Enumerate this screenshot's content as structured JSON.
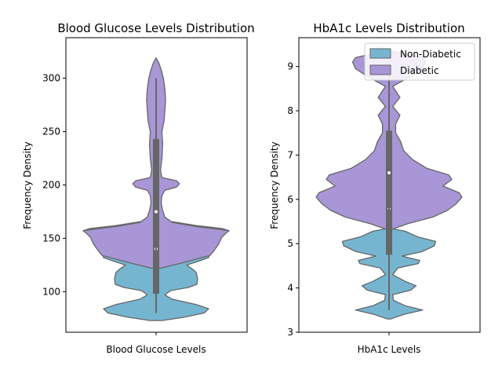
{
  "colors": {
    "non_diabetic": "#76b5d0",
    "diabetic": "#a896d6",
    "edge": "#666666",
    "box": "#666666"
  },
  "chart_data": [
    {
      "type": "violin",
      "title": "Blood Glucose Levels Distribution",
      "xlabel": "Blood Glucose Levels",
      "ylabel": "Frequency Density",
      "ylim": [
        62,
        338
      ],
      "yticks": [
        100,
        150,
        200,
        250,
        300
      ],
      "series": [
        {
          "key": "non_diabetic",
          "profile": [
            [
              73,
              0.08
            ],
            [
              76,
              0.38
            ],
            [
              80,
              0.66
            ],
            [
              84,
              0.72
            ],
            [
              88,
              0.55
            ],
            [
              93,
              0.22
            ],
            [
              97,
              0.12
            ],
            [
              101,
              0.2
            ],
            [
              104,
              0.45
            ],
            [
              107,
              0.56
            ],
            [
              112,
              0.57
            ],
            [
              118,
              0.55
            ],
            [
              121,
              0.5
            ],
            [
              125,
              0.42
            ],
            [
              128,
              0.56
            ],
            [
              132,
              0.72
            ],
            [
              136,
              0.74
            ],
            [
              140,
              0.68
            ],
            [
              144,
              0.7
            ],
            [
              148,
              0.66
            ],
            [
              151,
              0.55
            ],
            [
              154,
              0.8
            ],
            [
              157,
              1.0
            ],
            [
              159,
              0.92
            ],
            [
              162,
              0.55
            ],
            [
              166,
              0.18
            ],
            [
              170,
              0.05
            ]
          ],
          "box": {
            "q1": 98,
            "median": 140,
            "q3": 162,
            "whisker_low": 80,
            "whisker_high": 200
          }
        },
        {
          "key": "diabetic",
          "profile": [
            [
              122,
              0.06
            ],
            [
              126,
              0.3
            ],
            [
              130,
              0.52
            ],
            [
              134,
              0.74
            ],
            [
              139,
              0.8
            ],
            [
              145,
              0.86
            ],
            [
              151,
              0.9
            ],
            [
              155,
              0.96
            ],
            [
              157,
              1.0
            ],
            [
              159,
              0.8
            ],
            [
              161,
              0.55
            ],
            [
              165,
              0.22
            ],
            [
              170,
              0.12
            ],
            [
              176,
              0.09
            ],
            [
              183,
              0.07
            ],
            [
              190,
              0.08
            ],
            [
              195,
              0.12
            ],
            [
              198,
              0.28
            ],
            [
              201,
              0.32
            ],
            [
              204,
              0.28
            ],
            [
              207,
              0.08
            ],
            [
              214,
              0.06
            ],
            [
              225,
              0.08
            ],
            [
              238,
              0.09
            ],
            [
              250,
              0.08
            ],
            [
              260,
              0.11
            ],
            [
              270,
              0.12
            ],
            [
              280,
              0.13
            ],
            [
              290,
              0.12
            ],
            [
              300,
              0.1
            ],
            [
              308,
              0.07
            ],
            [
              314,
              0.04
            ],
            [
              319,
              0.0
            ]
          ],
          "box": {
            "q1": 155,
            "median": 175,
            "q3": 243,
            "whisker_low": 120,
            "whisker_high": 300
          }
        }
      ]
    },
    {
      "type": "violin",
      "title": "HbA1c Levels Distribution",
      "xlabel": "HbA1c Levels",
      "ylabel": "Frequency Density",
      "ylim": [
        3.0,
        9.65
      ],
      "yticks": [
        3,
        4,
        5,
        6,
        7,
        8,
        9
      ],
      "legend": {
        "position": "top-right",
        "entries": [
          "Non-Diabetic",
          "Diabetic"
        ]
      },
      "series": [
        {
          "key": "non_diabetic",
          "profile": [
            [
              3.3,
              0.02
            ],
            [
              3.4,
              0.2
            ],
            [
              3.5,
              0.46
            ],
            [
              3.6,
              0.22
            ],
            [
              3.72,
              0.06
            ],
            [
              3.85,
              0.05
            ],
            [
              3.95,
              0.3
            ],
            [
              4.05,
              0.37
            ],
            [
              4.15,
              0.22
            ],
            [
              4.3,
              0.05
            ],
            [
              4.45,
              0.12
            ],
            [
              4.55,
              0.4
            ],
            [
              4.62,
              0.42
            ],
            [
              4.72,
              0.18
            ],
            [
              4.82,
              0.45
            ],
            [
              4.95,
              0.62
            ],
            [
              5.05,
              0.64
            ],
            [
              5.15,
              0.4
            ],
            [
              5.28,
              0.22
            ],
            [
              5.35,
              0.0
            ]
          ],
          "box": {
            "q1": 4.75,
            "median": 5.8,
            "q3": 6.6,
            "whisker_low": 3.5,
            "whisker_high": 8.8
          }
        },
        {
          "key": "diabetic",
          "profile": [
            [
              5.3,
              0.0
            ],
            [
              5.45,
              0.26
            ],
            [
              5.6,
              0.6
            ],
            [
              5.75,
              0.8
            ],
            [
              5.9,
              0.92
            ],
            [
              6.05,
              1.0
            ],
            [
              6.15,
              0.96
            ],
            [
              6.3,
              0.74
            ],
            [
              6.45,
              0.86
            ],
            [
              6.55,
              0.82
            ],
            [
              6.7,
              0.52
            ],
            [
              6.9,
              0.32
            ],
            [
              7.1,
              0.2
            ],
            [
              7.3,
              0.16
            ],
            [
              7.5,
              0.09
            ],
            [
              7.7,
              0.09
            ],
            [
              7.9,
              0.15
            ],
            [
              8.1,
              0.05
            ],
            [
              8.3,
              0.15
            ],
            [
              8.55,
              0.05
            ],
            [
              8.8,
              0.32
            ],
            [
              8.95,
              0.46
            ],
            [
              9.1,
              0.5
            ],
            [
              9.2,
              0.46
            ],
            [
              9.3,
              0.2
            ],
            [
              9.35,
              0.0
            ]
          ],
          "box": {
            "q1": 5.8,
            "median": 6.6,
            "q3": 7.55,
            "whisker_low": 5.0,
            "whisker_high": 9.0
          }
        }
      ]
    }
  ]
}
